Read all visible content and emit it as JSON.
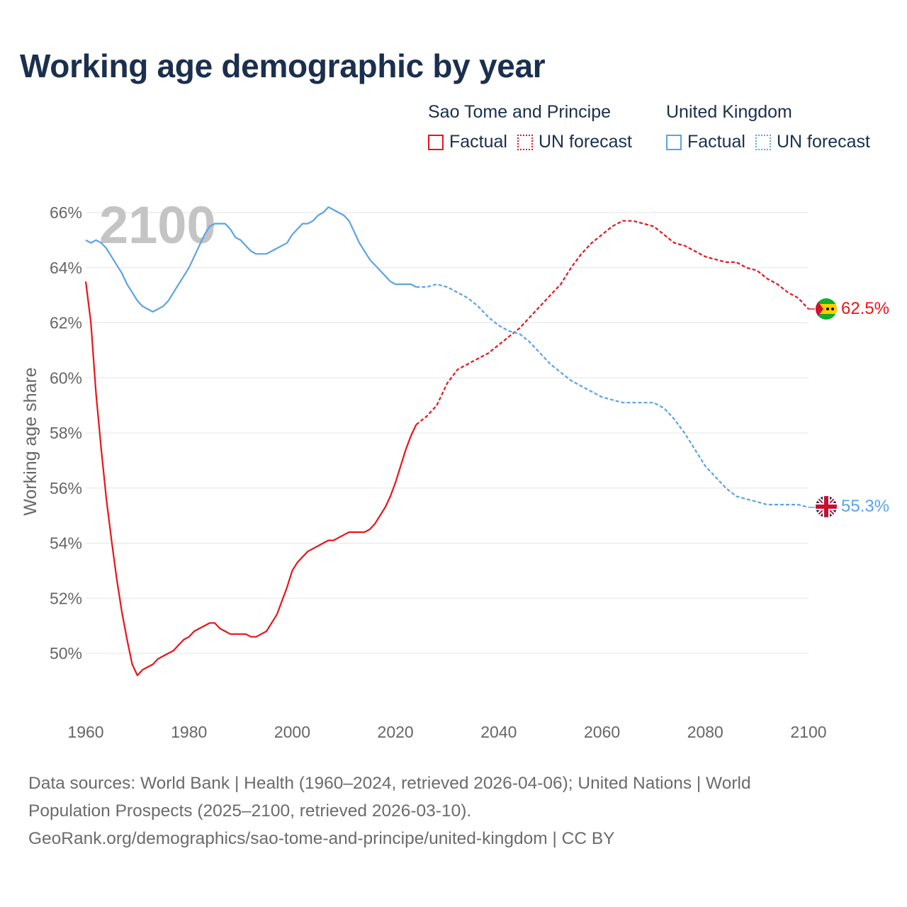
{
  "title": "Working age demographic by year",
  "legend": {
    "groups": [
      {
        "name": "Sao Tome and Principe",
        "color": "#e8141b",
        "factual": "Factual",
        "forecast": "UN forecast"
      },
      {
        "name": "United Kingdom",
        "color": "#5ba3e6",
        "factual": "Factual",
        "forecast": "UN forecast"
      }
    ]
  },
  "footer": {
    "line1": "Data sources: World Bank | Health (1960–2024, retrieved 2026-04-06); United Nations | World",
    "line2": "Population Prospects (2025–2100, retrieved 2026-03-10).",
    "line3": "GeoRank.org/demographics/sao-tome-and-principe/united-kingdom | CC BY"
  },
  "chart_data": {
    "type": "line",
    "title": "Working age demographic by year",
    "year_overlay": "2100",
    "xlabel": "",
    "ylabel": "Working age share",
    "xlim": [
      1960,
      2100
    ],
    "ylim": [
      48,
      66
    ],
    "grid": true,
    "x_ticks": [
      1960,
      1980,
      2000,
      2020,
      2040,
      2060,
      2080,
      2100
    ],
    "y_ticks": [
      50,
      52,
      54,
      56,
      58,
      60,
      62,
      64,
      66
    ],
    "y_tick_labels": [
      "50%",
      "52%",
      "54%",
      "56%",
      "58%",
      "60%",
      "62%",
      "64%",
      "66%"
    ],
    "series": [
      {
        "name": "Sao Tome and Principe",
        "color": "#e8141b",
        "icon": "sao-tome-flag-icon",
        "end_label": "62.5%",
        "factual": {
          "x": [
            1960,
            1961,
            1962,
            1963,
            1964,
            1965,
            1966,
            1967,
            1968,
            1969,
            1970,
            1971,
            1972,
            1973,
            1974,
            1975,
            1976,
            1977,
            1978,
            1979,
            1980,
            1981,
            1982,
            1983,
            1984,
            1985,
            1986,
            1987,
            1988,
            1989,
            1990,
            1991,
            1992,
            1993,
            1994,
            1995,
            1996,
            1997,
            1998,
            1999,
            2000,
            2001,
            2002,
            2003,
            2004,
            2005,
            2006,
            2007,
            2008,
            2009,
            2010,
            2011,
            2012,
            2013,
            2014,
            2015,
            2016,
            2017,
            2018,
            2019,
            2020,
            2021,
            2022,
            2023,
            2024
          ],
          "values": [
            63.5,
            62.0,
            59.4,
            57.4,
            55.6,
            54.1,
            52.7,
            51.5,
            50.5,
            49.6,
            49.2,
            49.4,
            49.5,
            49.6,
            49.8,
            49.9,
            50.0,
            50.1,
            50.3,
            50.5,
            50.6,
            50.8,
            50.9,
            51.0,
            51.1,
            51.1,
            50.9,
            50.8,
            50.7,
            50.7,
            50.7,
            50.7,
            50.6,
            50.6,
            50.7,
            50.8,
            51.1,
            51.4,
            51.9,
            52.4,
            53.0,
            53.3,
            53.5,
            53.7,
            53.8,
            53.9,
            54.0,
            54.1,
            54.1,
            54.2,
            54.3,
            54.4,
            54.4,
            54.4,
            54.4,
            54.5,
            54.7,
            55.0,
            55.3,
            55.7,
            56.2,
            56.8,
            57.4,
            57.9,
            58.3
          ]
        },
        "forecast": {
          "x": [
            2024,
            2026,
            2028,
            2030,
            2032,
            2034,
            2036,
            2038,
            2040,
            2042,
            2044,
            2046,
            2048,
            2050,
            2052,
            2054,
            2056,
            2058,
            2060,
            2062,
            2064,
            2066,
            2068,
            2070,
            2072,
            2074,
            2076,
            2078,
            2080,
            2082,
            2084,
            2086,
            2088,
            2090,
            2092,
            2094,
            2096,
            2098,
            2100
          ],
          "values": [
            58.3,
            58.6,
            59.0,
            59.8,
            60.3,
            60.5,
            60.7,
            60.9,
            61.2,
            61.5,
            61.8,
            62.2,
            62.6,
            63.0,
            63.4,
            64.0,
            64.5,
            64.9,
            65.2,
            65.5,
            65.7,
            65.7,
            65.6,
            65.5,
            65.2,
            64.9,
            64.8,
            64.6,
            64.4,
            64.3,
            64.2,
            64.2,
            64.0,
            63.9,
            63.6,
            63.4,
            63.1,
            62.9,
            62.5
          ]
        }
      },
      {
        "name": "United Kingdom",
        "color": "#5ba3e6",
        "icon": "uk-flag-icon",
        "end_label": "55.3%",
        "factual": {
          "x": [
            1960,
            1961,
            1962,
            1963,
            1964,
            1965,
            1966,
            1967,
            1968,
            1969,
            1970,
            1971,
            1972,
            1973,
            1974,
            1975,
            1976,
            1977,
            1978,
            1979,
            1980,
            1981,
            1982,
            1983,
            1984,
            1985,
            1986,
            1987,
            1988,
            1989,
            1990,
            1991,
            1992,
            1993,
            1994,
            1995,
            1996,
            1997,
            1998,
            1999,
            2000,
            2001,
            2002,
            2003,
            2004,
            2005,
            2006,
            2007,
            2008,
            2009,
            2010,
            2011,
            2012,
            2013,
            2014,
            2015,
            2016,
            2017,
            2018,
            2019,
            2020,
            2021,
            2022,
            2023,
            2024
          ],
          "values": [
            65.0,
            64.9,
            65.0,
            64.9,
            64.7,
            64.4,
            64.1,
            63.8,
            63.4,
            63.1,
            62.8,
            62.6,
            62.5,
            62.4,
            62.5,
            62.6,
            62.8,
            63.1,
            63.4,
            63.7,
            64.0,
            64.4,
            64.8,
            65.2,
            65.5,
            65.6,
            65.6,
            65.6,
            65.4,
            65.1,
            65.0,
            64.8,
            64.6,
            64.5,
            64.5,
            64.5,
            64.6,
            64.7,
            64.8,
            64.9,
            65.2,
            65.4,
            65.6,
            65.6,
            65.7,
            65.9,
            66.0,
            66.2,
            66.1,
            66.0,
            65.9,
            65.7,
            65.3,
            64.9,
            64.6,
            64.3,
            64.1,
            63.9,
            63.7,
            63.5,
            63.4,
            63.4,
            63.4,
            63.4,
            63.3
          ]
        },
        "forecast": {
          "x": [
            2024,
            2026,
            2028,
            2030,
            2032,
            2034,
            2036,
            2038,
            2040,
            2042,
            2044,
            2046,
            2048,
            2050,
            2052,
            2054,
            2056,
            2058,
            2060,
            2062,
            2064,
            2066,
            2068,
            2070,
            2072,
            2074,
            2076,
            2078,
            2080,
            2082,
            2084,
            2086,
            2088,
            2090,
            2092,
            2094,
            2096,
            2098,
            2100
          ],
          "values": [
            63.3,
            63.3,
            63.4,
            63.3,
            63.1,
            62.9,
            62.6,
            62.2,
            61.9,
            61.7,
            61.6,
            61.3,
            60.9,
            60.5,
            60.2,
            59.9,
            59.7,
            59.5,
            59.3,
            59.2,
            59.1,
            59.1,
            59.1,
            59.1,
            58.9,
            58.5,
            58.0,
            57.4,
            56.8,
            56.4,
            56.0,
            55.7,
            55.6,
            55.5,
            55.4,
            55.4,
            55.4,
            55.4,
            55.3
          ]
        }
      }
    ]
  }
}
